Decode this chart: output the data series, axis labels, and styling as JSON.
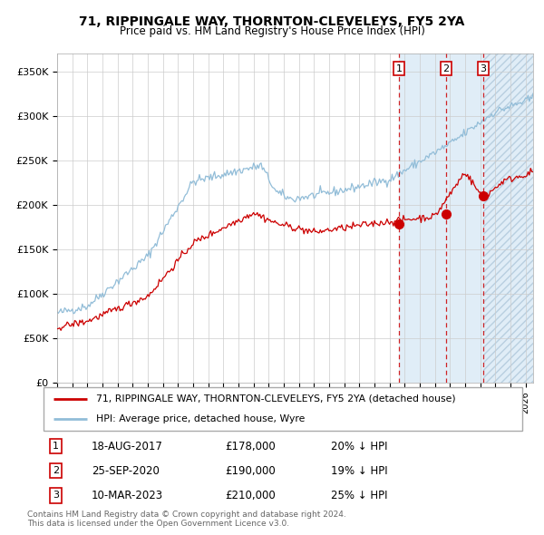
{
  "title": "71, RIPPINGALE WAY, THORNTON-CLEVELEYS, FY5 2YA",
  "subtitle": "Price paid vs. HM Land Registry's House Price Index (HPI)",
  "xlim_start": 1995.0,
  "xlim_end": 2026.5,
  "ylim": [
    0,
    370000
  ],
  "yticks": [
    0,
    50000,
    100000,
    150000,
    200000,
    250000,
    300000,
    350000
  ],
  "ytick_labels": [
    "£0",
    "£50K",
    "£100K",
    "£150K",
    "£200K",
    "£250K",
    "£300K",
    "£350K"
  ],
  "sale_dates": [
    2017.63,
    2020.74,
    2023.19
  ],
  "sale_prices": [
    178000,
    190000,
    210000
  ],
  "sale_labels": [
    "1",
    "2",
    "3"
  ],
  "sale_info": [
    {
      "num": "1",
      "date": "18-AUG-2017",
      "price": "£178,000",
      "pct": "20%",
      "dir": "↓"
    },
    {
      "num": "2",
      "date": "25-SEP-2020",
      "price": "£190,000",
      "pct": "19%",
      "dir": "↓"
    },
    {
      "num": "3",
      "date": "10-MAR-2023",
      "price": "£210,000",
      "pct": "25%",
      "dir": "↓"
    }
  ],
  "legend_line1": "71, RIPPINGALE WAY, THORNTON-CLEVELEYS, FY5 2YA (detached house)",
  "legend_line2": "HPI: Average price, detached house, Wyre",
  "footer1": "Contains HM Land Registry data © Crown copyright and database right 2024.",
  "footer2": "This data is licensed under the Open Government Licence v3.0.",
  "hpi_color": "#92bdd8",
  "price_color": "#cc0000",
  "shade_color": "#ddeeff",
  "hatch_color": "#c8d8e8",
  "background_color": "#ffffff",
  "grid_color": "#cccccc"
}
